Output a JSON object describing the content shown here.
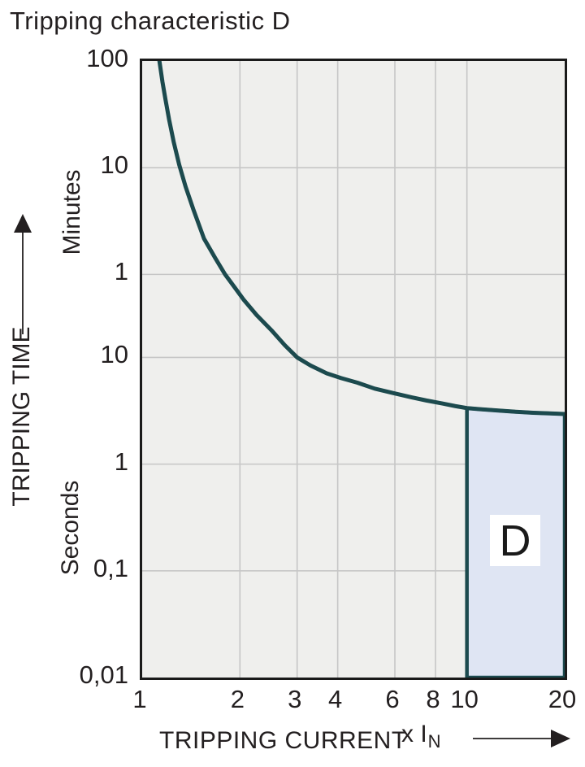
{
  "title": "Tripping characteristic D",
  "colors": {
    "curve": "#1c4a4e",
    "region_fill": "#dfe5f3",
    "plot_background": "#efefed",
    "gridline": "#c6c6c6",
    "plot_border": "#1a1a1a",
    "text": "#231f20"
  },
  "chart_data": {
    "type": "line",
    "title": "Tripping characteristic D",
    "xlabel": "TRIPPING CURRENT",
    "x_unit": "x I",
    "x_unit_sub": "N",
    "ylabel": "TRIPPING TIME",
    "y_unit_upper": "Minutes",
    "y_unit_lower": "Seconds",
    "x_scale": "log",
    "y_scale": "log",
    "x_range": [
      1,
      20
    ],
    "y_range_seconds": [
      0.01,
      6000
    ],
    "grid": true,
    "x_ticks": [
      {
        "label": "1",
        "v": 1
      },
      {
        "label": "2",
        "v": 2
      },
      {
        "label": "3",
        "v": 3
      },
      {
        "label": "4",
        "v": 4
      },
      {
        "label": "6",
        "v": 6
      },
      {
        "label": "8",
        "v": 8
      },
      {
        "label": "10",
        "v": 10
      },
      {
        "label": "20",
        "v": 20
      }
    ],
    "x_gridlines_v": [
      2,
      3,
      4,
      6,
      8,
      10
    ],
    "y_ticks": [
      {
        "label": "100",
        "t": 6000
      },
      {
        "label": "10",
        "t": 600
      },
      {
        "label": "1",
        "t": 60
      },
      {
        "label": "10",
        "t": 10
      },
      {
        "label": "1",
        "t": 1
      },
      {
        "label": "0,1",
        "t": 0.1
      },
      {
        "label": "0,01",
        "t": 0.01
      }
    ],
    "y_gridlines_t": [
      600,
      60,
      10,
      1,
      0.1
    ],
    "curve_points_v_t_seconds": [
      [
        1.125,
        6500
      ],
      [
        1.13,
        6000
      ],
      [
        1.155,
        3800
      ],
      [
        1.18,
        2600
      ],
      [
        1.21,
        1700
      ],
      [
        1.25,
        1050
      ],
      [
        1.3,
        640
      ],
      [
        1.36,
        400
      ],
      [
        1.44,
        240
      ],
      [
        1.55,
        130
      ],
      [
        1.68,
        85
      ],
      [
        1.8,
        60
      ],
      [
        1.93,
        45
      ],
      [
        2.05,
        35
      ],
      [
        2.25,
        25
      ],
      [
        2.5,
        18
      ],
      [
        2.75,
        13
      ],
      [
        3.0,
        10
      ],
      [
        3.3,
        8.4
      ],
      [
        3.7,
        7.1
      ],
      [
        4.1,
        6.4
      ],
      [
        4.6,
        5.8
      ],
      [
        5.2,
        5.1
      ],
      [
        5.9,
        4.65
      ],
      [
        6.7,
        4.25
      ],
      [
        7.5,
        3.95
      ],
      [
        8.4,
        3.7
      ],
      [
        9.2,
        3.5
      ],
      [
        10,
        3.35
      ],
      [
        11,
        3.27
      ],
      [
        12.5,
        3.18
      ],
      [
        14,
        3.1
      ],
      [
        16,
        3.03
      ],
      [
        18,
        2.99
      ],
      [
        20,
        2.95
      ]
    ],
    "region": {
      "label": "D",
      "x_from": 10,
      "x_to": 20,
      "y_bottom_seconds": 0.01,
      "top_follows_curve": true
    }
  }
}
